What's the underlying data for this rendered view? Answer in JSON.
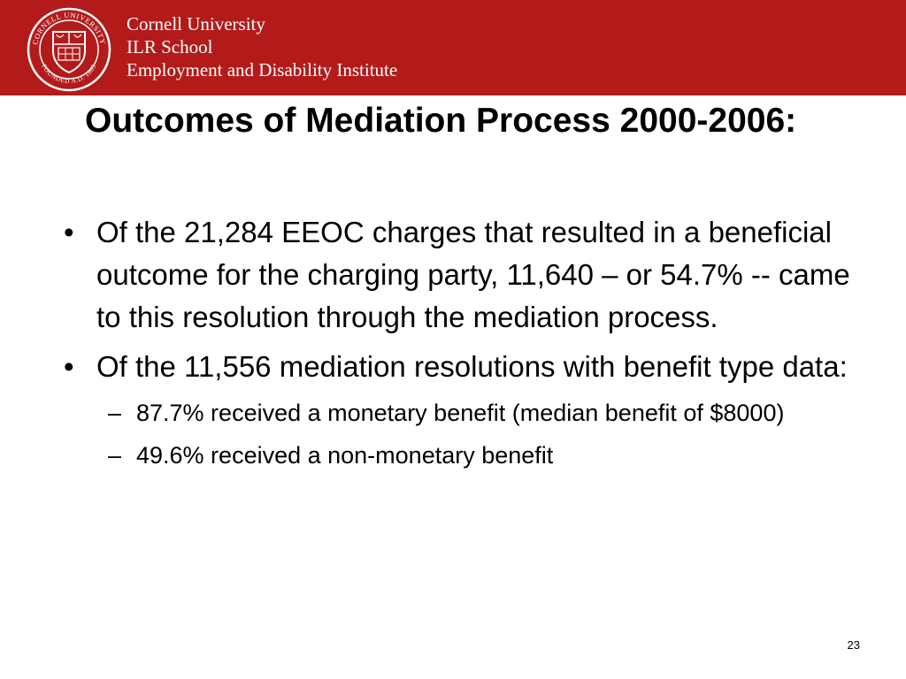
{
  "header": {
    "brand_color": "#b31b1b",
    "logo_icon": "cornell-seal-icon",
    "seal_text_top": "CORNELL UNIVERSITY",
    "seal_text_bottom": "FOUNDED A.D. 1865",
    "lines": [
      "Cornell University",
      "ILR School",
      "Employment and Disability Institute"
    ]
  },
  "slide": {
    "title": "Outcomes of Mediation Process 2000-2006:",
    "bullets": [
      {
        "text": "Of the 21,284 EEOC charges that resulted in a beneficial outcome for the charging party, 11,640 – or 54.7% -- came to this resolution through the mediation process.",
        "subitems": []
      },
      {
        "text": "Of the 11,556 mediation resolutions with benefit type data:",
        "subitems": [
          "87.7% received a monetary benefit (median benefit of $8000)",
          "49.6% received a non-monetary benefit"
        ]
      }
    ],
    "bullet_marker": "•",
    "subitem_marker": "–",
    "page_number": "23"
  }
}
